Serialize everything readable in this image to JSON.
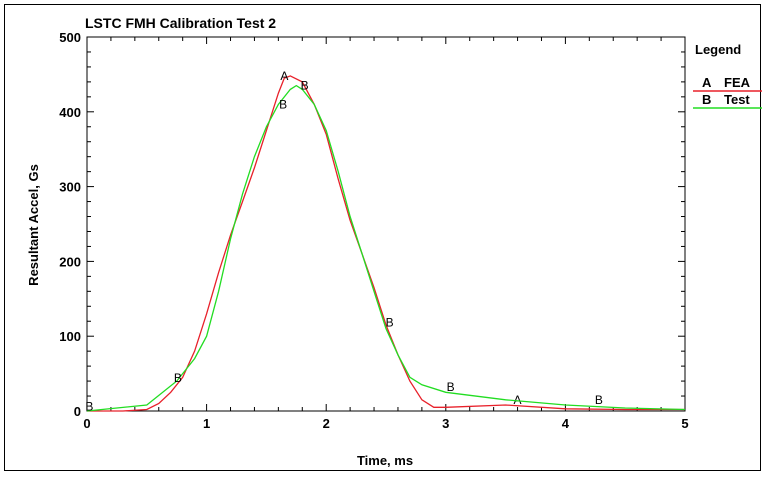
{
  "chart_data": {
    "type": "line",
    "title": "LSTC FMH Calibration Test 2",
    "xlabel": "Time, ms",
    "ylabel": "Resultant Accel, Gs",
    "xlim": [
      0,
      5
    ],
    "ylim": [
      0,
      500
    ],
    "xticks": [
      0,
      1,
      2,
      3,
      4,
      5
    ],
    "yticks": [
      0,
      100,
      200,
      300,
      400,
      500
    ],
    "grid": false,
    "legend": {
      "title": "Legend",
      "placement": "right",
      "entries": [
        {
          "letter": "A",
          "label": "FEA"
        },
        {
          "letter": "B",
          "label": "Test"
        }
      ]
    },
    "series": [
      {
        "name": "FEA",
        "letter": "A",
        "color": "#e8202a",
        "x": [
          0,
          0.3,
          0.5,
          0.6,
          0.7,
          0.8,
          0.9,
          1.0,
          1.1,
          1.2,
          1.3,
          1.4,
          1.5,
          1.6,
          1.65,
          1.7,
          1.8,
          1.9,
          2.0,
          2.1,
          2.2,
          2.3,
          2.4,
          2.5,
          2.6,
          2.7,
          2.8,
          2.9,
          3.0,
          3.5,
          4.0,
          4.5,
          5.0
        ],
        "y": [
          0,
          0,
          2,
          10,
          25,
          45,
          80,
          130,
          185,
          235,
          280,
          325,
          375,
          425,
          445,
          448,
          440,
          410,
          370,
          310,
          255,
          210,
          165,
          115,
          75,
          40,
          15,
          5,
          5,
          8,
          3,
          2,
          2
        ],
        "markers": [
          [
            1.65,
            448
          ],
          [
            3.6,
            15
          ]
        ]
      },
      {
        "name": "Test",
        "letter": "B",
        "color": "#22dd22",
        "x": [
          0,
          0.5,
          0.75,
          0.9,
          1.0,
          1.1,
          1.2,
          1.3,
          1.4,
          1.5,
          1.6,
          1.7,
          1.75,
          1.8,
          1.9,
          2.0,
          2.1,
          2.2,
          2.3,
          2.4,
          2.5,
          2.6,
          2.7,
          2.8,
          3.0,
          3.5,
          4.0,
          4.5,
          5.0
        ],
        "y": [
          0,
          8,
          40,
          70,
          100,
          160,
          230,
          290,
          340,
          380,
          410,
          430,
          435,
          430,
          410,
          375,
          320,
          260,
          210,
          160,
          110,
          75,
          45,
          35,
          25,
          15,
          8,
          4,
          2
        ],
        "markers": [
          [
            0.02,
            6
          ],
          [
            0.76,
            44
          ],
          [
            1.64,
            410
          ],
          [
            1.82,
            435
          ],
          [
            2.53,
            118
          ],
          [
            3.04,
            32
          ],
          [
            4.28,
            15
          ]
        ]
      }
    ]
  }
}
